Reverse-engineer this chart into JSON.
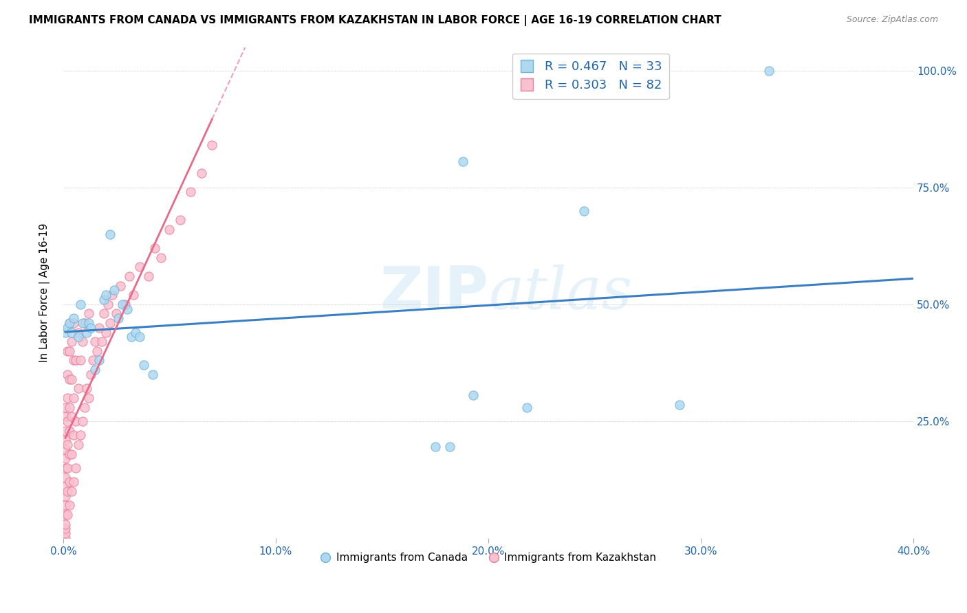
{
  "title": "IMMIGRANTS FROM CANADA VS IMMIGRANTS FROM KAZAKHSTAN IN LABOR FORCE | AGE 16-19 CORRELATION CHART",
  "source": "Source: ZipAtlas.com",
  "ylabel": "In Labor Force | Age 16-19",
  "xlim": [
    0.0,
    0.4
  ],
  "ylim": [
    0.0,
    1.05
  ],
  "canada_color": "#ADD8F0",
  "canada_edge_color": "#6EB3D9",
  "kazakhstan_color": "#F9C0CF",
  "kazakhstan_edge_color": "#E87FA0",
  "regression_canada_color": "#3A7FC1",
  "regression_kazakhstan_color": "#E8698A",
  "regression_kazakhstan_dashed_color": "#F0A0B8",
  "R_canada": 0.467,
  "N_canada": 33,
  "R_kazakhstan": 0.303,
  "N_kazakhstan": 82,
  "legend_text_color": "#2166AC",
  "watermark": "ZIPatlas",
  "canada_x": [
    0.001,
    0.002,
    0.003,
    0.004,
    0.005,
    0.007,
    0.008,
    0.009,
    0.011,
    0.012,
    0.013,
    0.015,
    0.017,
    0.019,
    0.02,
    0.022,
    0.024,
    0.026,
    0.028,
    0.03,
    0.032,
    0.034,
    0.036,
    0.038,
    0.042,
    0.175,
    0.182,
    0.188,
    0.193,
    0.218,
    0.245,
    0.29,
    0.332
  ],
  "canada_y": [
    0.44,
    0.45,
    0.46,
    0.44,
    0.47,
    0.43,
    0.5,
    0.46,
    0.44,
    0.46,
    0.45,
    0.36,
    0.38,
    0.51,
    0.52,
    0.65,
    0.53,
    0.47,
    0.5,
    0.49,
    0.43,
    0.44,
    0.43,
    0.37,
    0.35,
    0.195,
    0.195,
    0.805,
    0.305,
    0.28,
    0.7,
    0.285,
    1.0
  ],
  "kazakhstan_x": [
    0.001,
    0.001,
    0.001,
    0.001,
    0.001,
    0.001,
    0.001,
    0.001,
    0.001,
    0.001,
    0.001,
    0.001,
    0.001,
    0.001,
    0.001,
    0.001,
    0.002,
    0.002,
    0.002,
    0.002,
    0.002,
    0.002,
    0.002,
    0.002,
    0.003,
    0.003,
    0.003,
    0.003,
    0.003,
    0.003,
    0.003,
    0.003,
    0.004,
    0.004,
    0.004,
    0.004,
    0.004,
    0.005,
    0.005,
    0.005,
    0.005,
    0.005,
    0.006,
    0.006,
    0.006,
    0.007,
    0.007,
    0.007,
    0.008,
    0.008,
    0.009,
    0.009,
    0.01,
    0.01,
    0.011,
    0.012,
    0.012,
    0.013,
    0.014,
    0.015,
    0.016,
    0.017,
    0.018,
    0.019,
    0.02,
    0.021,
    0.022,
    0.023,
    0.025,
    0.027,
    0.029,
    0.031,
    0.033,
    0.036,
    0.04,
    0.043,
    0.046,
    0.05,
    0.055,
    0.06,
    0.065,
    0.07
  ],
  "kazakhstan_y": [
    0.0,
    0.01,
    0.02,
    0.03,
    0.05,
    0.07,
    0.09,
    0.11,
    0.13,
    0.15,
    0.17,
    0.19,
    0.21,
    0.23,
    0.26,
    0.28,
    0.05,
    0.1,
    0.15,
    0.2,
    0.25,
    0.3,
    0.35,
    0.4,
    0.07,
    0.12,
    0.18,
    0.23,
    0.28,
    0.34,
    0.4,
    0.46,
    0.1,
    0.18,
    0.26,
    0.34,
    0.42,
    0.12,
    0.22,
    0.3,
    0.38,
    0.46,
    0.15,
    0.25,
    0.38,
    0.2,
    0.32,
    0.44,
    0.22,
    0.38,
    0.25,
    0.42,
    0.28,
    0.46,
    0.32,
    0.3,
    0.48,
    0.35,
    0.38,
    0.42,
    0.4,
    0.45,
    0.42,
    0.48,
    0.44,
    0.5,
    0.46,
    0.52,
    0.48,
    0.54,
    0.5,
    0.56,
    0.52,
    0.58,
    0.56,
    0.62,
    0.6,
    0.66,
    0.68,
    0.74,
    0.78,
    0.84
  ],
  "xtick_labels": [
    "0.0%",
    "10.0%",
    "20.0%",
    "30.0%",
    "40.0%"
  ],
  "xtick_vals": [
    0.0,
    0.1,
    0.2,
    0.3,
    0.4
  ],
  "ytick_labels": [
    "25.0%",
    "50.0%",
    "75.0%",
    "100.0%"
  ],
  "ytick_vals": [
    0.25,
    0.5,
    0.75,
    1.0
  ]
}
